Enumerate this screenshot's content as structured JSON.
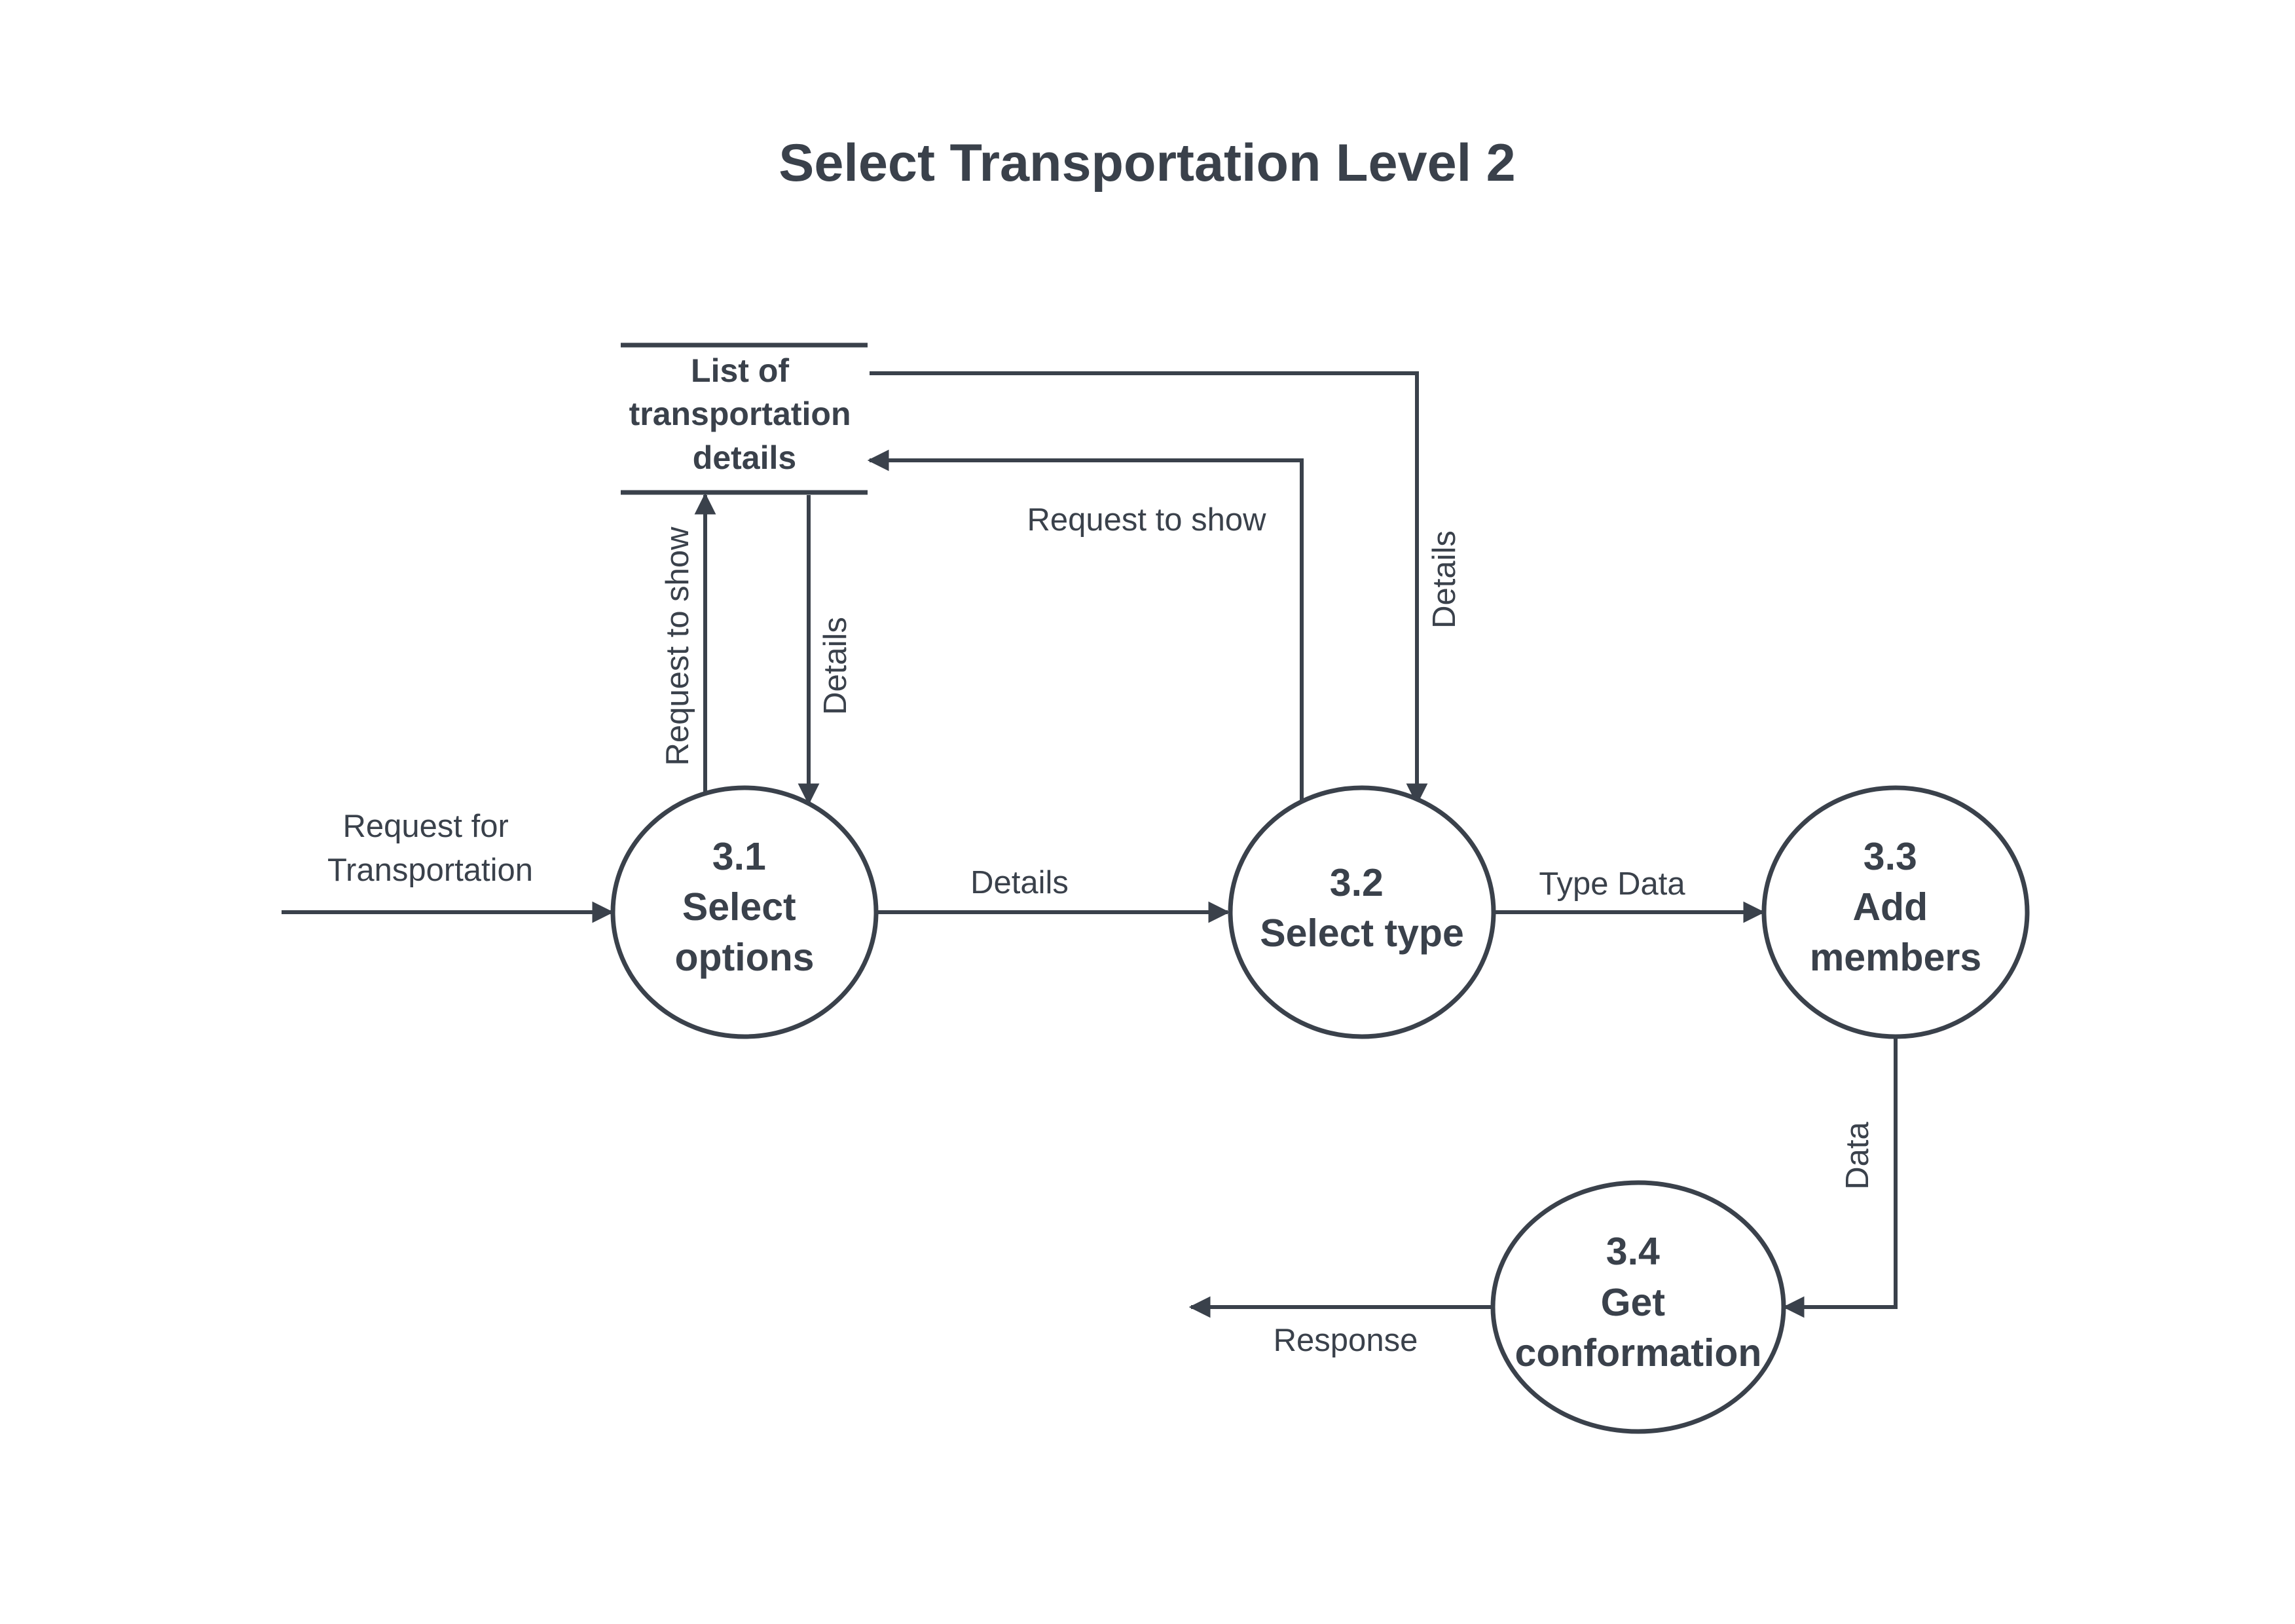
{
  "title": "Select Transportation Level 2",
  "data_store": {
    "lines": [
      "List of",
      "transportation",
      "details"
    ]
  },
  "processes": [
    {
      "id": "3.1",
      "lines": [
        "3.1",
        "Select",
        "options"
      ]
    },
    {
      "id": "3.2",
      "lines": [
        "3.2",
        "Select type"
      ]
    },
    {
      "id": "3.3",
      "lines": [
        "3.3",
        "Add",
        "members"
      ]
    },
    {
      "id": "3.4",
      "lines": [
        "3.4",
        "Get",
        "conformation"
      ]
    }
  ],
  "flows": {
    "request_for_transportation": [
      "Request for",
      "Transportation"
    ],
    "p1_to_store": "Request to show",
    "store_to_p1": "Details",
    "p1_to_p2": "Details",
    "p2_to_store": "Request to show",
    "store_to_p2": "Details",
    "p2_to_p3": "Type Data",
    "p3_to_p4": "Data",
    "p4_response": "Response"
  }
}
